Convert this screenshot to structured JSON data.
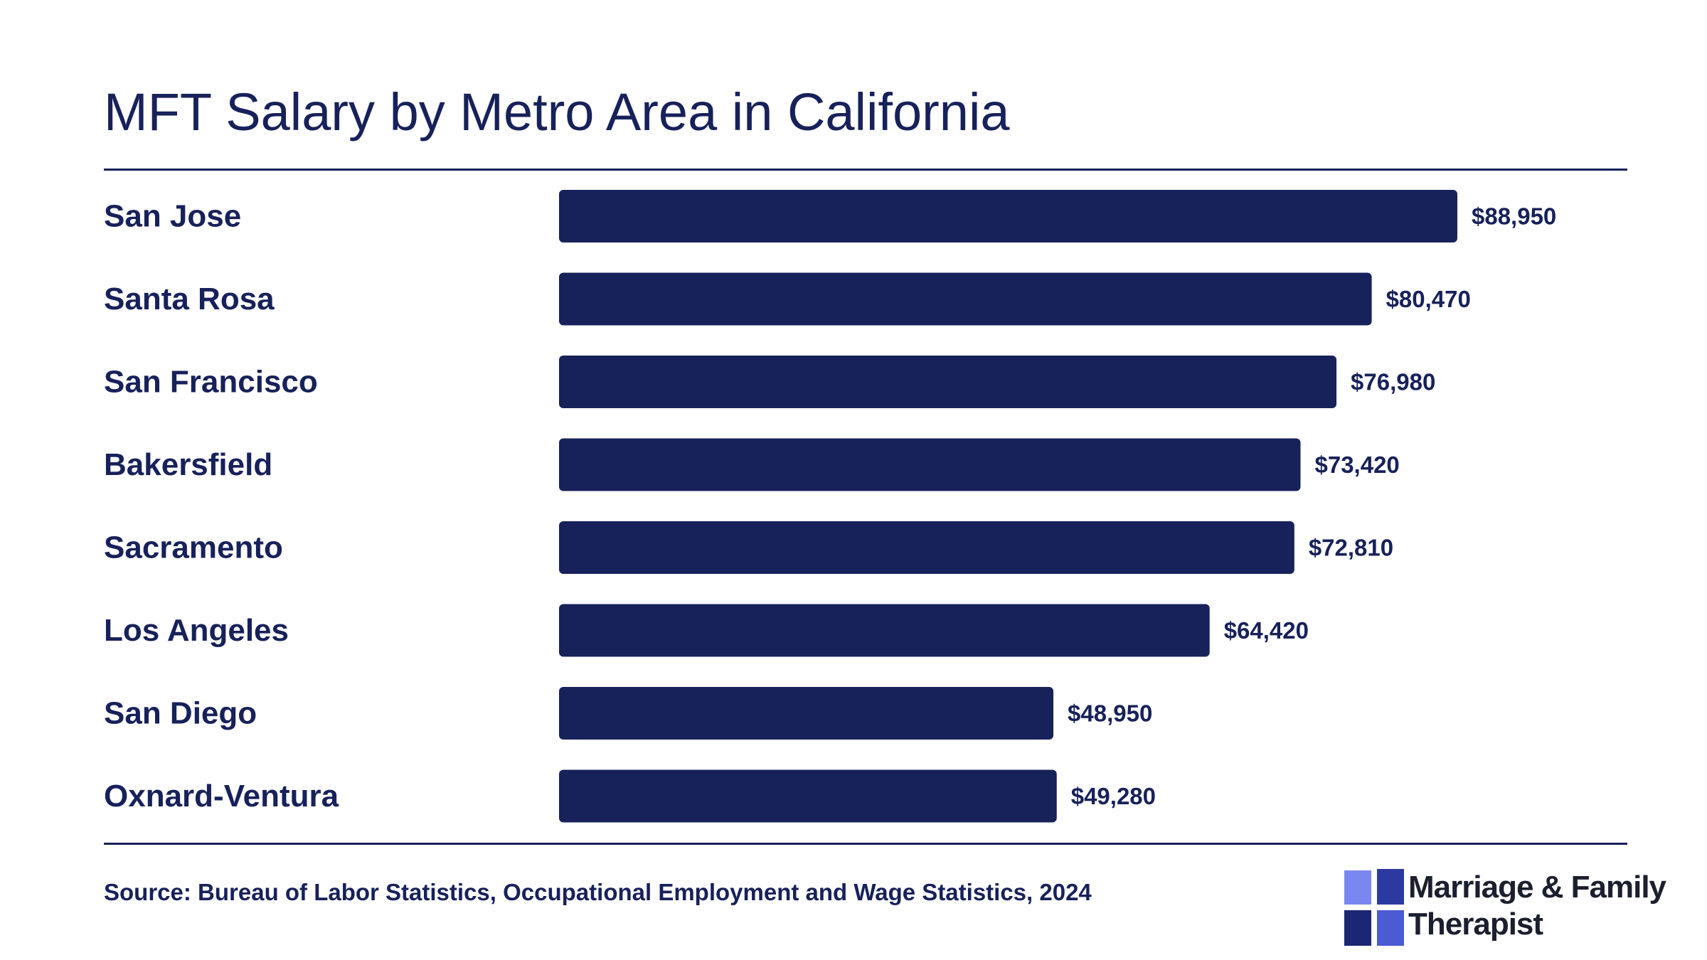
{
  "title": "MFT Salary by Metro Area in California",
  "source": "Source: Bureau of Labor Statistics, Occupational Employment and Wage Statistics, 2024",
  "logo": {
    "line1": "Marriage & Family",
    "line2": "Therapist"
  },
  "colors": {
    "bar": "#17215a",
    "text": "#17215a",
    "logo_light": "#7b87f0",
    "logo_dark": "#1d2a8a"
  },
  "chart_data": {
    "type": "bar",
    "orientation": "horizontal",
    "title": "MFT Salary by Metro Area in California",
    "categories": [
      "San Jose",
      "Santa Rosa",
      "San Francisco",
      "Bakersfield",
      "Sacramento",
      "Los Angeles",
      "San Diego",
      "Oxnard-Ventura"
    ],
    "values": [
      88950,
      80470,
      76980,
      73420,
      72810,
      64420,
      48950,
      49280
    ],
    "value_labels": [
      "$88,950",
      "$80,470",
      "$76,980",
      "$73,420",
      "$72,810",
      "$64,420",
      "$48,950",
      "$49,280"
    ],
    "xlabel": "",
    "ylabel": "",
    "grid": false,
    "legend": "none"
  }
}
